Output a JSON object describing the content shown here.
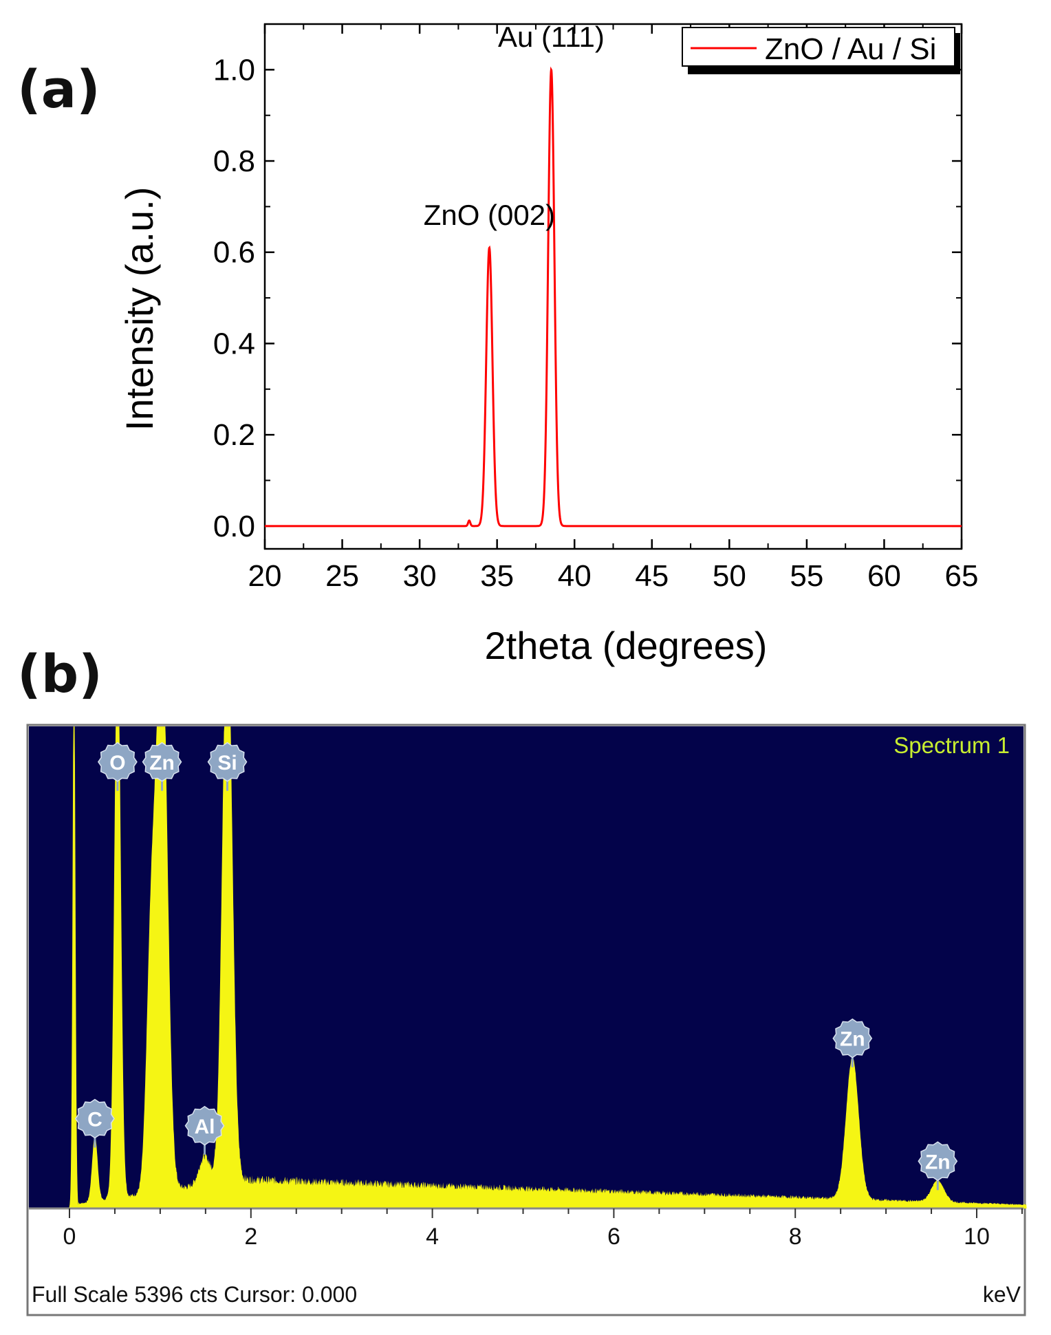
{
  "panel_a": {
    "label": "(a)",
    "chart_data": {
      "type": "line",
      "xlabel": "2theta (degrees)",
      "ylabel": "Intensity (a.u.)",
      "xlim": [
        20,
        65
      ],
      "ylim": [
        -0.05,
        1.1
      ],
      "xticks": [
        20,
        25,
        30,
        35,
        40,
        45,
        50,
        55,
        60,
        65
      ],
      "yticks": [
        0.0,
        0.2,
        0.4,
        0.6,
        0.8,
        1.0
      ],
      "ytick_labels": [
        "0.0",
        "0.2",
        "0.4",
        "0.6",
        "0.8",
        "1.0"
      ],
      "legend": {
        "entries": [
          "ZnO / Au / Si"
        ],
        "placement": "top-right"
      },
      "series": [
        {
          "name": "ZnO / Au / Si",
          "color": "#ff0000",
          "baseline": 0.0,
          "peaks": [
            {
              "x": 33.2,
              "y": 0.012,
              "width": 0.07
            },
            {
              "x": 34.5,
              "y": 0.61,
              "width": 0.2
            },
            {
              "x": 38.5,
              "y": 1.0,
              "width": 0.2
            }
          ]
        }
      ],
      "annotations": [
        {
          "text": "Au (111)",
          "x": 38.5,
          "y": 1.05
        },
        {
          "text": "ZnO (002)",
          "x": 34.5,
          "y": 0.66
        }
      ],
      "grid": false
    }
  },
  "panel_b": {
    "label": "(b)",
    "chart_data": {
      "type": "area",
      "title": "Spectrum 1",
      "xunit": "keV",
      "xlim": [
        -0.1,
        10.6
      ],
      "ylim": [
        0,
        1
      ],
      "y_relative": true,
      "xticks": [
        0,
        2,
        4,
        6,
        8,
        10
      ],
      "footer": "Full Scale 5396 cts Cursor: 0.000",
      "colors": {
        "background": "#03034a",
        "fill": "#f5f514",
        "title": "#c8ee30",
        "marker": "#8ea6c4"
      },
      "background_noise": {
        "start": 1.85,
        "level_start": 0.062,
        "level_end": 0.008,
        "end": 10.55
      },
      "peaks": [
        {
          "x": 0.05,
          "y": 1.2,
          "width": 0.015
        },
        {
          "x": 0.28,
          "y": 0.14,
          "width": 0.03
        },
        {
          "x": 0.53,
          "y": 1.2,
          "width": 0.035
        },
        {
          "x": 0.9,
          "y": 0.52,
          "width": 0.05
        },
        {
          "x": 1.02,
          "y": 1.2,
          "width": 0.06
        },
        {
          "x": 1.49,
          "y": 0.06,
          "width": 0.06
        },
        {
          "x": 1.74,
          "y": 1.2,
          "width": 0.055
        },
        {
          "x": 8.63,
          "y": 0.3,
          "width": 0.07
        },
        {
          "x": 9.57,
          "y": 0.045,
          "width": 0.07
        }
      ],
      "element_markers": [
        {
          "label": "O",
          "x": 0.53,
          "y": 0.945
        },
        {
          "label": "Zn",
          "x": 1.02,
          "y": 0.945
        },
        {
          "label": "Si",
          "x": 1.74,
          "y": 0.945
        },
        {
          "label": "C",
          "x": 0.28,
          "y": 0.19
        },
        {
          "label": "Al",
          "x": 1.49,
          "y": 0.175
        },
        {
          "label": "Zn",
          "x": 8.63,
          "y": 0.36
        },
        {
          "label": "Zn",
          "x": 9.57,
          "y": 0.1
        }
      ]
    }
  }
}
